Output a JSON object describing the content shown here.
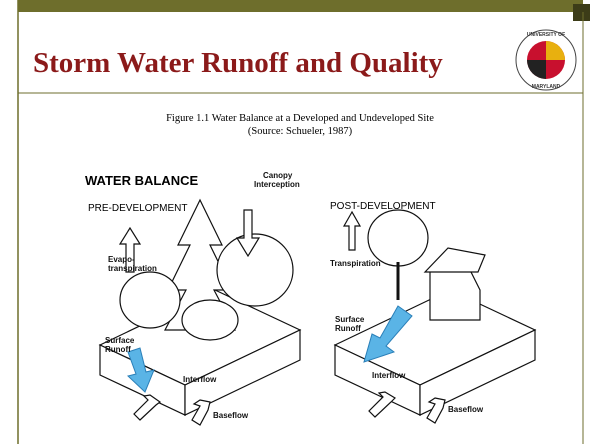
{
  "slide": {
    "title": "Storm Water Runoff and Quality",
    "logo": [
      "UNIVERSITY OF",
      "MARYLAND"
    ],
    "figure": {
      "caption": "Figure 1.1 Water Balance at a Developed and Undeveloped Site",
      "source": "(Source:  Schueler, 1987)",
      "heading": "WATER BALANCE",
      "pre": {
        "label": "PRE-DEVELOPMENT",
        "canopy": [
          "Canopy",
          "Interception"
        ],
        "evapo": [
          "Evapo-",
          "transpiration"
        ],
        "runoff": [
          "Surface",
          "Runoff"
        ],
        "interflow": "Interflow",
        "baseflow": "Baseflow"
      },
      "post": {
        "label": "POST-DEVELOPMENT",
        "transpiration": "Transpiration",
        "runoff": [
          "Surface",
          "Runoff"
        ],
        "interflow": "Interflow",
        "baseflow": "Baseflow"
      }
    }
  }
}
